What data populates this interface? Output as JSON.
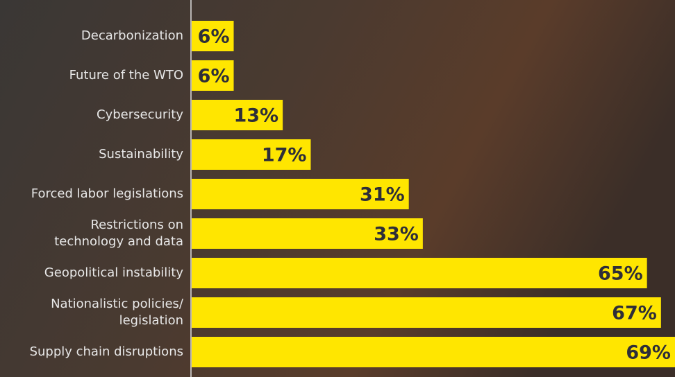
{
  "chart_data": {
    "type": "bar",
    "orientation": "horizontal",
    "categories": [
      "Decarbonization",
      "Future of the WTO",
      "Cybersecurity",
      "Sustainability",
      "Forced labor legislations",
      [
        "Restrictions on",
        "technology and data"
      ],
      "Geopolitical instability",
      [
        "Nationalistic policies/",
        "legislation"
      ],
      "Supply chain disruptions"
    ],
    "values": [
      6,
      6,
      13,
      17,
      31,
      33,
      65,
      67,
      69
    ],
    "value_labels": [
      "6%",
      "6%",
      "13%",
      "17%",
      "31%",
      "33%",
      "65%",
      "67%",
      "69%"
    ],
    "color": "#ffe600"
  }
}
